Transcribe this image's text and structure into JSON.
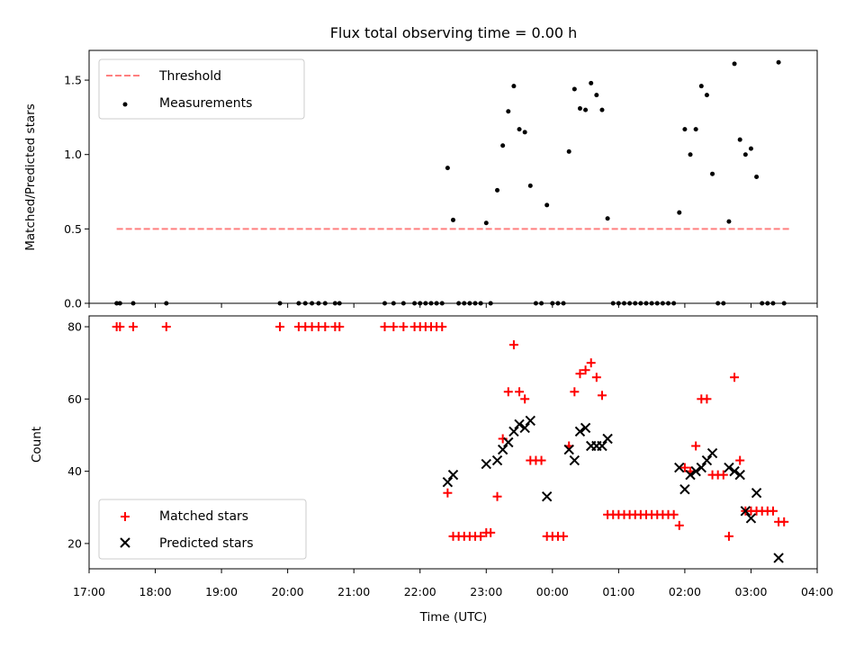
{
  "chart_data": [
    {
      "type": "scatter",
      "title": "Flux total observing time = 0.00 h",
      "xlabel": "",
      "ylabel": "Matched/Predicted stars",
      "ylim": [
        0,
        1.7
      ],
      "yticks": [
        "0.0",
        "0.5",
        "1.0",
        "1.5"
      ],
      "xlim": [
        "17:00",
        "04:00"
      ],
      "legend": "top-left",
      "threshold": {
        "name": "Threshold",
        "value": 0.5,
        "x_range": [
          "17:25",
          "03:35"
        ],
        "color": "#ff7f7f",
        "style": "dashed"
      },
      "series": [
        {
          "name": "Measurements",
          "color": "#000000",
          "marker": "dot",
          "points": [
            [
              "17:25",
              0
            ],
            [
              "17:28",
              0
            ],
            [
              "17:40",
              0
            ],
            [
              "18:10",
              0
            ],
            [
              "19:53",
              0
            ],
            [
              "20:10",
              0
            ],
            [
              "20:16",
              0
            ],
            [
              "20:22",
              0
            ],
            [
              "20:28",
              0
            ],
            [
              "20:34",
              0
            ],
            [
              "20:43",
              0
            ],
            [
              "20:47",
              0
            ],
            [
              "21:28",
              0
            ],
            [
              "21:36",
              0
            ],
            [
              "21:45",
              0
            ],
            [
              "21:55",
              0
            ],
            [
              "22:00",
              0
            ],
            [
              "22:05",
              0
            ],
            [
              "22:10",
              0
            ],
            [
              "22:15",
              0
            ],
            [
              "22:20",
              0
            ],
            [
              "22:25",
              0.91
            ],
            [
              "22:30",
              0.56
            ],
            [
              "22:35",
              0
            ],
            [
              "22:40",
              0
            ],
            [
              "22:45",
              0
            ],
            [
              "22:50",
              0
            ],
            [
              "22:55",
              0
            ],
            [
              "23:00",
              0.54
            ],
            [
              "23:04",
              0
            ],
            [
              "23:10",
              0.76
            ],
            [
              "23:15",
              1.06
            ],
            [
              "23:20",
              1.29
            ],
            [
              "23:25",
              1.46
            ],
            [
              "23:30",
              1.17
            ],
            [
              "23:35",
              1.15
            ],
            [
              "23:40",
              0.79
            ],
            [
              "23:45",
              0
            ],
            [
              "23:50",
              0
            ],
            [
              "23:55",
              0.66
            ],
            [
              "00:00",
              0
            ],
            [
              "00:05",
              0
            ],
            [
              "00:10",
              0
            ],
            [
              "00:15",
              1.02
            ],
            [
              "00:20",
              1.44
            ],
            [
              "00:25",
              1.31
            ],
            [
              "00:30",
              1.3
            ],
            [
              "00:35",
              1.48
            ],
            [
              "00:40",
              1.4
            ],
            [
              "00:45",
              1.3
            ],
            [
              "00:50",
              0.57
            ],
            [
              "00:55",
              0
            ],
            [
              "01:00",
              0
            ],
            [
              "01:05",
              0
            ],
            [
              "01:10",
              0
            ],
            [
              "01:15",
              0
            ],
            [
              "01:20",
              0
            ],
            [
              "01:25",
              0
            ],
            [
              "01:30",
              0
            ],
            [
              "01:35",
              0
            ],
            [
              "01:40",
              0
            ],
            [
              "01:45",
              0
            ],
            [
              "01:50",
              0
            ],
            [
              "01:55",
              0.61
            ],
            [
              "02:00",
              1.17
            ],
            [
              "02:05",
              1.0
            ],
            [
              "02:10",
              1.17
            ],
            [
              "02:15",
              1.46
            ],
            [
              "02:20",
              1.4
            ],
            [
              "02:25",
              0.87
            ],
            [
              "02:30",
              0
            ],
            [
              "02:35",
              0
            ],
            [
              "02:40",
              0.55
            ],
            [
              "02:45",
              1.61
            ],
            [
              "02:50",
              1.1
            ],
            [
              "02:55",
              1.0
            ],
            [
              "03:00",
              1.04
            ],
            [
              "03:05",
              0.85
            ],
            [
              "03:10",
              0
            ],
            [
              "03:15",
              0
            ],
            [
              "03:20",
              0
            ],
            [
              "03:25",
              1.62
            ],
            [
              "03:30",
              0
            ]
          ]
        }
      ]
    },
    {
      "type": "scatter",
      "title": "",
      "xlabel": "Time (UTC)",
      "ylabel": "Count",
      "ylim": [
        13,
        83
      ],
      "yticks": [
        "20",
        "40",
        "60",
        "80"
      ],
      "xlim": [
        "17:00",
        "04:00"
      ],
      "xticks": [
        "17:00",
        "18:00",
        "19:00",
        "20:00",
        "21:00",
        "22:00",
        "23:00",
        "00:00",
        "01:00",
        "02:00",
        "03:00",
        "04:00"
      ],
      "legend": "bottom-left",
      "series": [
        {
          "name": "Matched stars",
          "color": "#ff0000",
          "marker": "plus",
          "points": [
            [
              "17:25",
              80
            ],
            [
              "17:28",
              80
            ],
            [
              "17:40",
              80
            ],
            [
              "18:10",
              80
            ],
            [
              "19:53",
              80
            ],
            [
              "20:10",
              80
            ],
            [
              "20:16",
              80
            ],
            [
              "20:22",
              80
            ],
            [
              "20:28",
              80
            ],
            [
              "20:34",
              80
            ],
            [
              "20:43",
              80
            ],
            [
              "20:47",
              80
            ],
            [
              "21:28",
              80
            ],
            [
              "21:36",
              80
            ],
            [
              "21:45",
              80
            ],
            [
              "21:55",
              80
            ],
            [
              "22:00",
              80
            ],
            [
              "22:05",
              80
            ],
            [
              "22:10",
              80
            ],
            [
              "22:15",
              80
            ],
            [
              "22:20",
              80
            ],
            [
              "22:25",
              34
            ],
            [
              "22:30",
              22
            ],
            [
              "22:35",
              22
            ],
            [
              "22:40",
              22
            ],
            [
              "22:45",
              22
            ],
            [
              "22:50",
              22
            ],
            [
              "22:55",
              22
            ],
            [
              "23:00",
              23
            ],
            [
              "23:04",
              23
            ],
            [
              "23:10",
              33
            ],
            [
              "23:15",
              49
            ],
            [
              "23:20",
              62
            ],
            [
              "23:25",
              75
            ],
            [
              "23:30",
              62
            ],
            [
              "23:35",
              60
            ],
            [
              "23:40",
              43
            ],
            [
              "23:45",
              43
            ],
            [
              "23:50",
              43
            ],
            [
              "23:55",
              22
            ],
            [
              "00:00",
              22
            ],
            [
              "00:05",
              22
            ],
            [
              "00:10",
              22
            ],
            [
              "00:15",
              47
            ],
            [
              "00:20",
              62
            ],
            [
              "00:25",
              67
            ],
            [
              "00:30",
              68
            ],
            [
              "00:35",
              70
            ],
            [
              "00:40",
              66
            ],
            [
              "00:45",
              61
            ],
            [
              "00:50",
              28
            ],
            [
              "00:55",
              28
            ],
            [
              "01:00",
              28
            ],
            [
              "01:05",
              28
            ],
            [
              "01:10",
              28
            ],
            [
              "01:15",
              28
            ],
            [
              "01:20",
              28
            ],
            [
              "01:25",
              28
            ],
            [
              "01:30",
              28
            ],
            [
              "01:35",
              28
            ],
            [
              "01:40",
              28
            ],
            [
              "01:45",
              28
            ],
            [
              "01:50",
              28
            ],
            [
              "01:55",
              25
            ],
            [
              "02:00",
              41
            ],
            [
              "02:05",
              40
            ],
            [
              "02:10",
              47
            ],
            [
              "02:15",
              60
            ],
            [
              "02:20",
              60
            ],
            [
              "02:25",
              39
            ],
            [
              "02:30",
              39
            ],
            [
              "02:35",
              39
            ],
            [
              "02:40",
              22
            ],
            [
              "02:45",
              66
            ],
            [
              "02:50",
              43
            ],
            [
              "02:55",
              29
            ],
            [
              "03:00",
              29
            ],
            [
              "03:05",
              29
            ],
            [
              "03:10",
              29
            ],
            [
              "03:15",
              29
            ],
            [
              "03:20",
              29
            ],
            [
              "03:25",
              26
            ],
            [
              "03:30",
              26
            ]
          ]
        },
        {
          "name": "Predicted stars",
          "color": "#000000",
          "marker": "x",
          "points": [
            [
              "22:25",
              37
            ],
            [
              "22:30",
              39
            ],
            [
              "23:00",
              42
            ],
            [
              "23:10",
              43
            ],
            [
              "23:15",
              46
            ],
            [
              "23:20",
              48
            ],
            [
              "23:25",
              51
            ],
            [
              "23:30",
              53
            ],
            [
              "23:35",
              52
            ],
            [
              "23:40",
              54
            ],
            [
              "23:55",
              33
            ],
            [
              "00:15",
              46
            ],
            [
              "00:20",
              43
            ],
            [
              "00:25",
              51
            ],
            [
              "00:30",
              52
            ],
            [
              "00:35",
              47
            ],
            [
              "00:40",
              47
            ],
            [
              "00:45",
              47
            ],
            [
              "00:50",
              49
            ],
            [
              "01:55",
              41
            ],
            [
              "02:00",
              35
            ],
            [
              "02:05",
              39
            ],
            [
              "02:10",
              40
            ],
            [
              "02:15",
              41
            ],
            [
              "02:20",
              43
            ],
            [
              "02:25",
              45
            ],
            [
              "02:40",
              41
            ],
            [
              "02:45",
              40
            ],
            [
              "02:50",
              39
            ],
            [
              "02:55",
              29
            ],
            [
              "03:00",
              27
            ],
            [
              "03:05",
              34
            ],
            [
              "03:25",
              16
            ]
          ]
        }
      ]
    }
  ]
}
